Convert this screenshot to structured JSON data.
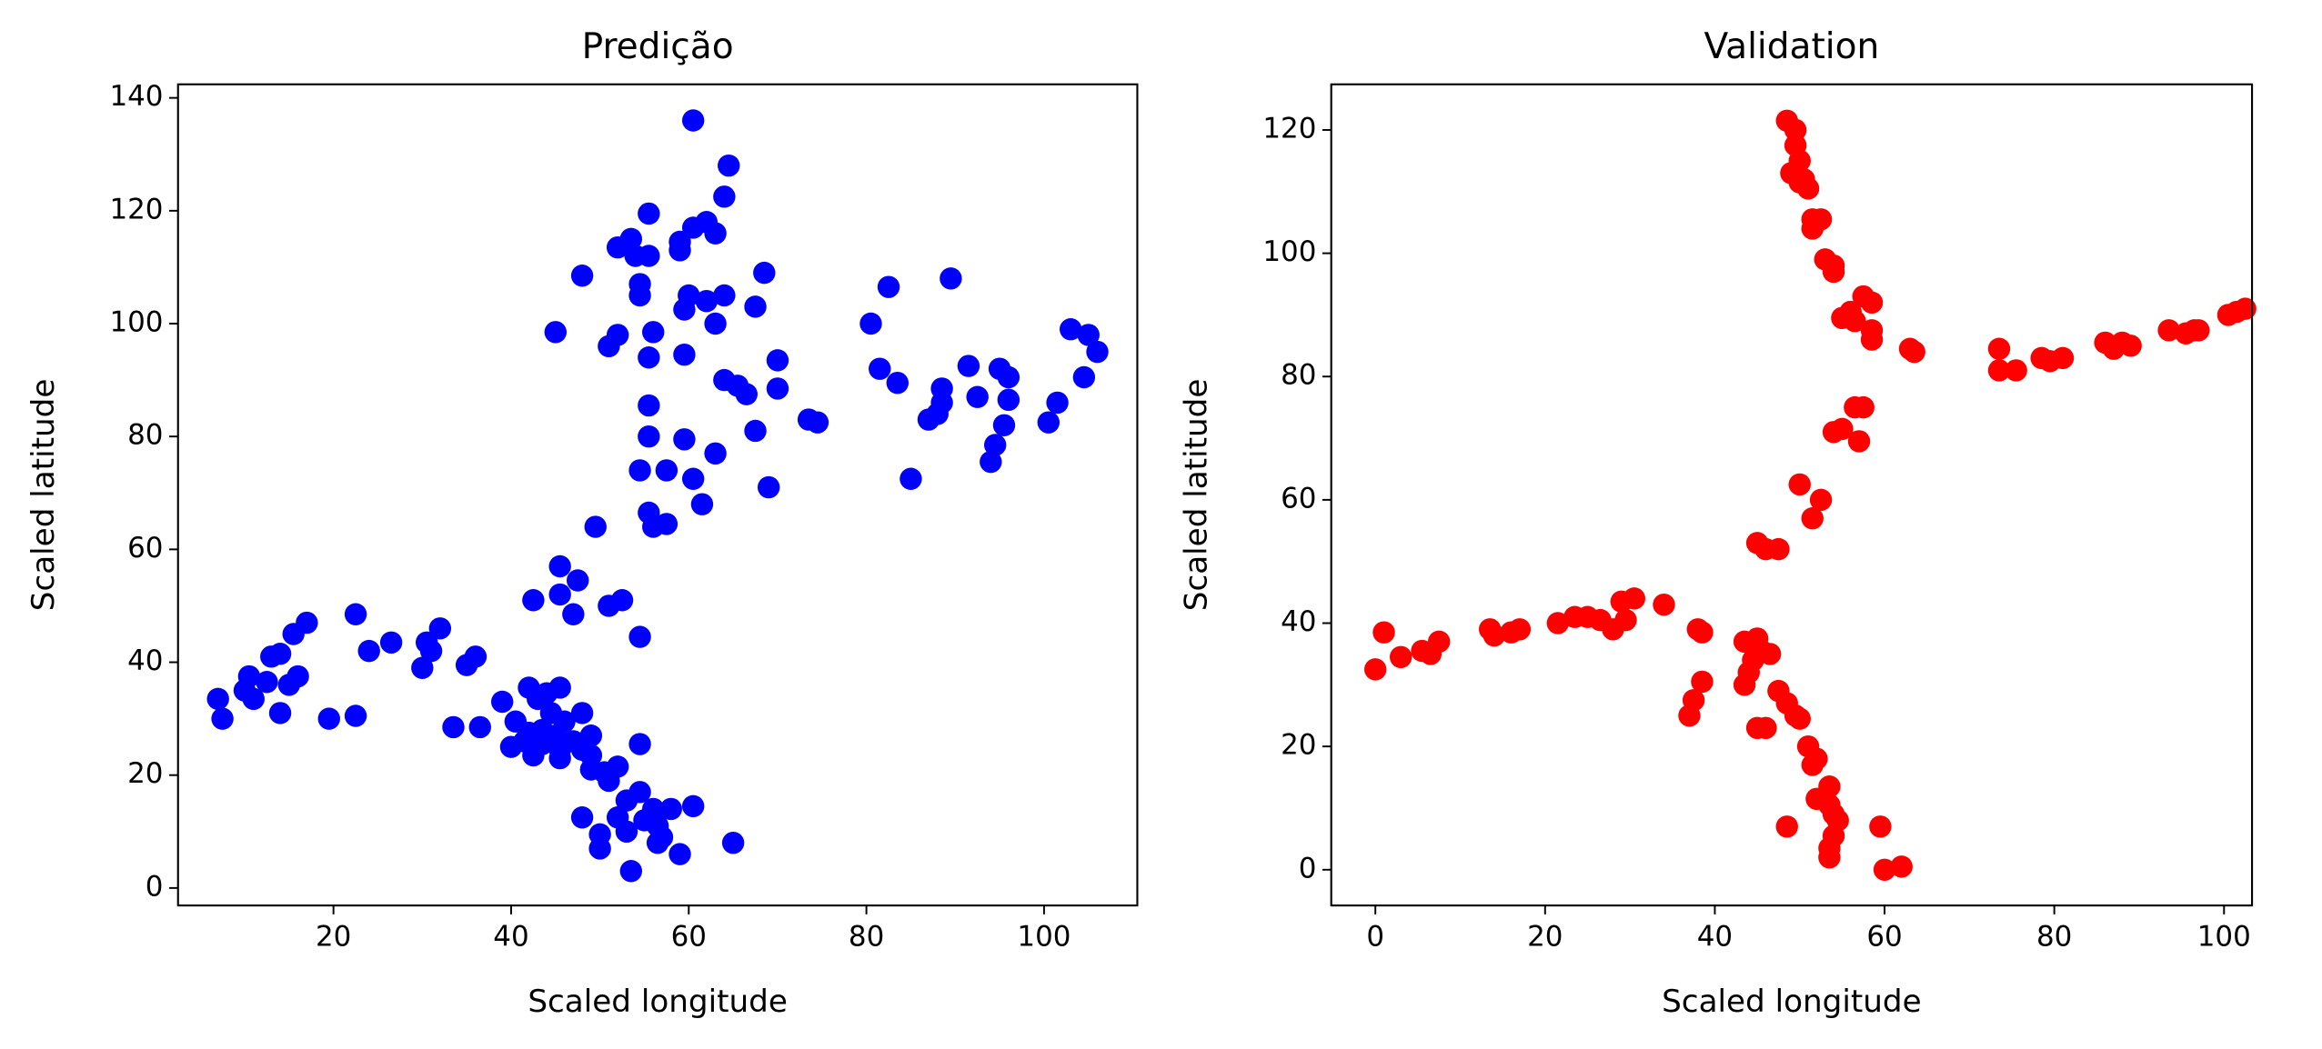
{
  "chart_data": [
    {
      "type": "scatter",
      "title": "Predição",
      "x_label": "Scaled longitude",
      "y_label": "Scaled latitude",
      "color": "#0000ff",
      "xlim": [
        2.5,
        110.5
      ],
      "ylim": [
        -3.1,
        142.4
      ],
      "xticks": [
        20,
        40,
        60,
        80,
        100
      ],
      "yticks": [
        0,
        20,
        40,
        60,
        80,
        100,
        120,
        140
      ],
      "x": [
        60.5,
        64.5,
        64,
        55.5,
        62,
        60.5,
        63,
        53.5,
        59,
        52,
        59,
        54,
        55.5,
        48,
        54.5,
        68.5,
        89.5,
        54.5,
        60,
        64,
        62,
        59.5,
        67.5,
        82.5,
        80.5,
        63,
        45,
        52,
        56,
        51,
        55.5,
        59.5,
        70,
        81.5,
        91.5,
        95,
        96,
        83.5,
        64,
        65.5,
        66.5,
        70,
        88.5,
        92.5,
        88.5,
        96,
        101.5,
        55.5,
        88,
        87,
        73.5,
        74.5,
        95.5,
        100.5,
        67.5,
        55.5,
        59.5,
        94.5,
        63,
        94,
        54.5,
        57.5,
        60.5,
        85,
        69,
        61.5,
        55.5,
        56,
        57.5,
        49.5,
        103,
        105,
        106,
        104.5,
        45.5,
        47.5,
        45.5,
        42.5,
        47,
        51,
        52.5,
        54.5,
        22.5,
        17,
        15.5,
        24,
        26.5,
        30.5,
        32,
        31,
        30,
        35,
        36,
        13,
        14,
        16,
        10.5,
        12.5,
        15,
        10,
        11,
        7,
        7.5,
        14,
        19.5,
        22.5,
        33.5,
        36.5,
        39,
        42,
        44,
        45.5,
        43,
        44.5,
        40.5,
        46,
        48,
        43.5,
        42,
        45,
        49,
        47,
        40,
        41.5,
        43.5,
        45.5,
        48,
        42.5,
        45.5,
        49,
        49,
        50.5,
        52,
        51,
        54.5,
        54.5,
        53,
        56,
        58,
        60.5,
        48,
        52,
        55,
        56.5,
        53,
        57,
        50,
        56.5,
        50,
        59,
        65,
        53.5
      ],
      "values": [
        136,
        128,
        122.5,
        119.5,
        118,
        117,
        116,
        115,
        114.5,
        113.5,
        113,
        112,
        112,
        108.5,
        107,
        109,
        108,
        105,
        105,
        105,
        104,
        102.5,
        103,
        106.5,
        100,
        100,
        98.5,
        98,
        98.5,
        96,
        94,
        94.5,
        93.5,
        92,
        92.5,
        92,
        90.5,
        89.5,
        90,
        89,
        87.5,
        88.5,
        88.5,
        87,
        86,
        86.5,
        86,
        85.5,
        84,
        83,
        83,
        82.5,
        82,
        82.5,
        81,
        80,
        79.5,
        78.5,
        77,
        75.5,
        74,
        74,
        72.5,
        72.5,
        71,
        68,
        66.5,
        64,
        64.5,
        64,
        99,
        98,
        95,
        90.5,
        57,
        54.5,
        52,
        51,
        48.5,
        50,
        51,
        44.5,
        48.5,
        47,
        45,
        42,
        43.5,
        43.5,
        46,
        42,
        39,
        39.5,
        41,
        41,
        41.5,
        37.5,
        37.5,
        36.5,
        36,
        35,
        33.5,
        33.5,
        30,
        31,
        30,
        30.5,
        28.5,
        28.5,
        33,
        35.5,
        34.5,
        35.5,
        33.5,
        31,
        29.5,
        29.5,
        31,
        28,
        27.5,
        27,
        27,
        26,
        25,
        26,
        25.5,
        24.5,
        24.5,
        23.5,
        23,
        23.5,
        21,
        20.5,
        21.5,
        19,
        25.5,
        17,
        15.5,
        14,
        14,
        14.5,
        12.5,
        12.5,
        12,
        11,
        10,
        9,
        9.5,
        8,
        7,
        6,
        8,
        3
      ]
    },
    {
      "type": "scatter",
      "title": "Validation",
      "x_label": "Scaled longitude",
      "y_label": "Scaled latitude",
      "color": "#ff0000",
      "xlim": [
        -5.2,
        103.3
      ],
      "ylim": [
        -5.8,
        127.4
      ],
      "xticks": [
        0,
        20,
        40,
        60,
        80,
        100
      ],
      "yticks": [
        0,
        20,
        40,
        60,
        80,
        100,
        120
      ],
      "x": [
        48.5,
        49.5,
        49.5,
        50,
        49,
        50.5,
        50,
        51,
        51.5,
        51.5,
        52.5,
        53,
        54,
        54,
        57.5,
        58.5,
        56,
        55,
        56.5,
        58.5,
        58.5,
        63,
        63.5,
        73.5,
        73.5,
        75.5,
        78.5,
        81,
        79.5,
        86,
        87,
        88,
        89,
        93.5,
        95.5,
        96.5,
        97,
        100.5,
        101.5,
        102.5,
        57.5,
        56.5,
        55,
        54,
        57,
        50,
        52.5,
        51.5,
        45,
        46,
        47.5,
        0,
        1,
        3,
        5.5,
        6.5,
        7.5,
        13.5,
        14,
        16,
        17,
        21.5,
        23.5,
        25,
        26.5,
        28,
        29.5,
        29,
        30.5,
        34,
        38,
        38.5,
        43.5,
        45,
        45.5,
        46.5,
        44.5,
        44,
        43.5,
        38.5,
        37.5,
        37,
        47.5,
        48.5,
        49.5,
        50,
        45,
        46,
        51,
        52,
        51.5,
        53.5,
        52,
        53.5,
        54,
        54.5,
        48.5,
        59.5,
        54,
        53.5,
        53.5,
        60,
        62
      ],
      "values": [
        121.5,
        120,
        117.5,
        115,
        113,
        112,
        111.5,
        110.5,
        105.5,
        104,
        105.5,
        99,
        98,
        97,
        93,
        92,
        90.5,
        89.5,
        89,
        87.5,
        86,
        84.5,
        84,
        84.5,
        81,
        81,
        83,
        83,
        82.5,
        85.5,
        84.5,
        85.5,
        85,
        87.5,
        87,
        87.5,
        87.5,
        90,
        90.5,
        91,
        75,
        75,
        71.5,
        71,
        69.5,
        62.5,
        60,
        57,
        53,
        52,
        52,
        32.5,
        38.5,
        34.5,
        35.5,
        35,
        37,
        39,
        38,
        38.5,
        39,
        40,
        41,
        41,
        40.5,
        39,
        40.5,
        43.5,
        44,
        43,
        39,
        38.5,
        37,
        37.5,
        35.5,
        35,
        34,
        32,
        30,
        30.5,
        27.5,
        25,
        29,
        27,
        25,
        24.5,
        23,
        23,
        20,
        18,
        17,
        13.5,
        11.5,
        10.5,
        9,
        8,
        7,
        7,
        5.5,
        3.5,
        2,
        0,
        0.5
      ]
    }
  ]
}
